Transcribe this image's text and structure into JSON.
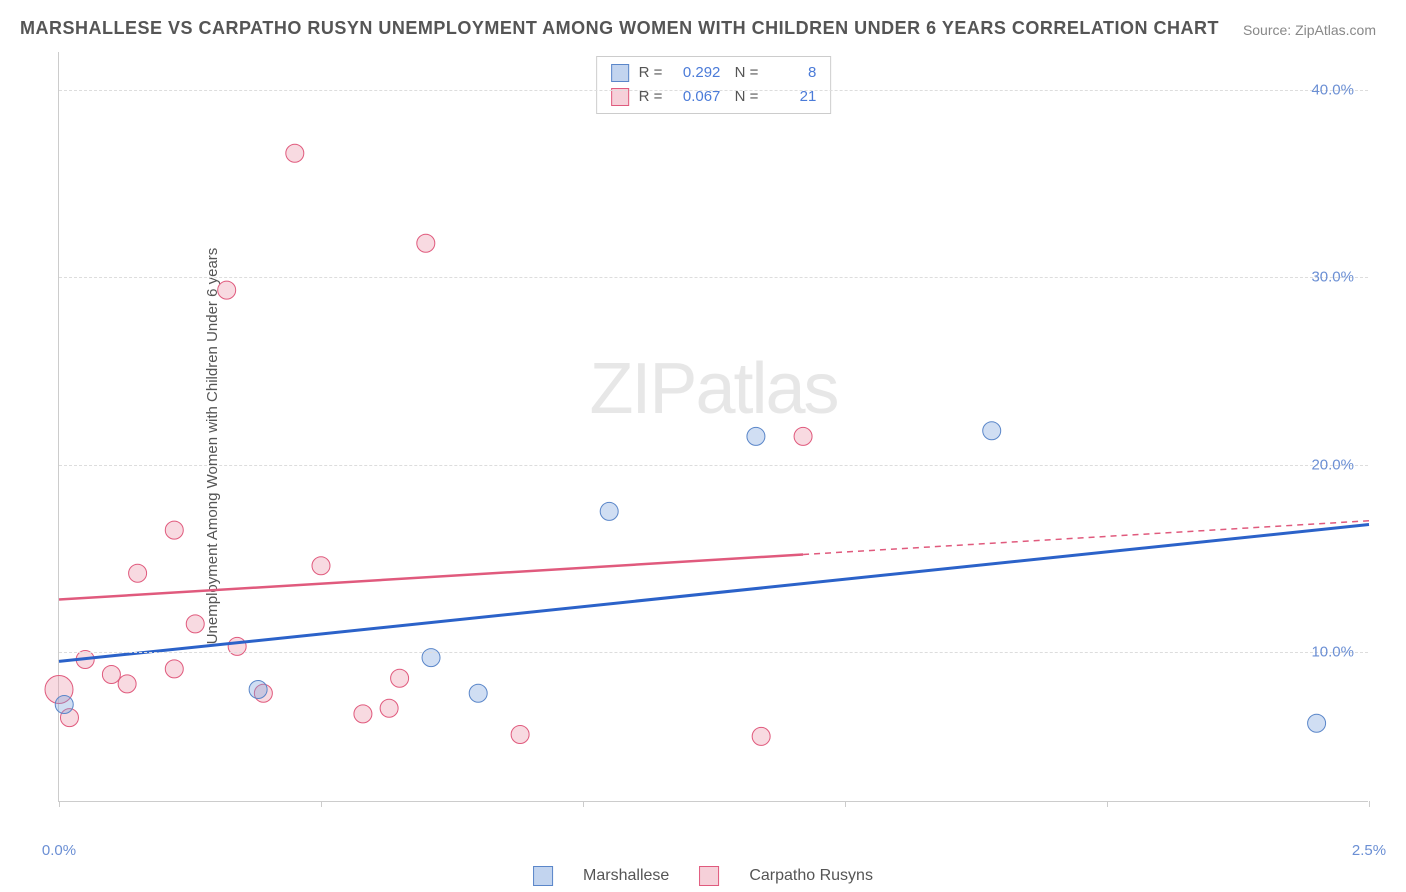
{
  "title": "MARSHALLESE VS CARPATHO RUSYN UNEMPLOYMENT AMONG WOMEN WITH CHILDREN UNDER 6 YEARS CORRELATION CHART",
  "source": "Source: ZipAtlas.com",
  "ylabel": "Unemployment Among Women with Children Under 6 years",
  "watermark_zip": "ZIP",
  "watermark_atlas": "atlas",
  "chart": {
    "type": "scatter",
    "xlim": [
      0.0,
      2.5
    ],
    "ylim": [
      2.0,
      42.0
    ],
    "xticks": [
      0.0,
      0.5,
      1.0,
      1.5,
      2.0,
      2.5
    ],
    "xtick_labels": [
      "0.0%",
      "",
      "",
      "",
      "",
      "2.5%"
    ],
    "yticks": [
      10.0,
      20.0,
      30.0,
      40.0
    ],
    "ytick_labels": [
      "10.0%",
      "20.0%",
      "30.0%",
      "40.0%"
    ],
    "grid_color": "#dddddd",
    "axis_color": "#cccccc",
    "tick_label_color": "#6b8fd4",
    "background_color": "#ffffff",
    "series": [
      {
        "name": "Marshallese",
        "color_fill": "rgba(120,160,220,0.35)",
        "color_stroke": "#5a86c9",
        "trend_color": "#2b62c9",
        "R": 0.292,
        "N": 8,
        "line": {
          "x0": 0.0,
          "y0": 9.5,
          "x1": 2.5,
          "y1": 16.8
        },
        "points": [
          {
            "x": 0.01,
            "y": 7.2,
            "r": 9
          },
          {
            "x": 0.38,
            "y": 8.0,
            "r": 9
          },
          {
            "x": 0.71,
            "y": 9.7,
            "r": 9
          },
          {
            "x": 0.8,
            "y": 7.8,
            "r": 9
          },
          {
            "x": 1.05,
            "y": 17.5,
            "r": 9
          },
          {
            "x": 1.33,
            "y": 21.5,
            "r": 9
          },
          {
            "x": 1.78,
            "y": 21.8,
            "r": 9
          },
          {
            "x": 2.4,
            "y": 6.2,
            "r": 9
          }
        ]
      },
      {
        "name": "Carpatho Rusyns",
        "color_fill": "rgba(235,150,170,0.35)",
        "color_stroke": "#e05a7d",
        "trend_color": "#e05a7d",
        "R": 0.067,
        "N": 21,
        "line": {
          "x0": 0.0,
          "y0": 12.8,
          "x1": 1.42,
          "y1": 15.2,
          "x2": 2.5,
          "y2": 17.0
        },
        "points": [
          {
            "x": 0.0,
            "y": 8.0,
            "r": 14
          },
          {
            "x": 0.02,
            "y": 6.5,
            "r": 9
          },
          {
            "x": 0.05,
            "y": 9.6,
            "r": 9
          },
          {
            "x": 0.1,
            "y": 8.8,
            "r": 9
          },
          {
            "x": 0.13,
            "y": 8.3,
            "r": 9
          },
          {
            "x": 0.15,
            "y": 14.2,
            "r": 9
          },
          {
            "x": 0.22,
            "y": 16.5,
            "r": 9
          },
          {
            "x": 0.22,
            "y": 9.1,
            "r": 9
          },
          {
            "x": 0.26,
            "y": 11.5,
            "r": 9
          },
          {
            "x": 0.32,
            "y": 29.3,
            "r": 9
          },
          {
            "x": 0.34,
            "y": 10.3,
            "r": 9
          },
          {
            "x": 0.39,
            "y": 7.8,
            "r": 9
          },
          {
            "x": 0.45,
            "y": 36.6,
            "r": 9
          },
          {
            "x": 0.5,
            "y": 14.6,
            "r": 9
          },
          {
            "x": 0.58,
            "y": 6.7,
            "r": 9
          },
          {
            "x": 0.63,
            "y": 7.0,
            "r": 9
          },
          {
            "x": 0.65,
            "y": 8.6,
            "r": 9
          },
          {
            "x": 0.7,
            "y": 31.8,
            "r": 9
          },
          {
            "x": 0.88,
            "y": 5.6,
            "r": 9
          },
          {
            "x": 1.34,
            "y": 5.5,
            "r": 9
          },
          {
            "x": 1.42,
            "y": 21.5,
            "r": 9
          }
        ]
      }
    ]
  },
  "legend": {
    "items": [
      {
        "label": "Marshallese",
        "fill": "rgba(120,160,220,0.45)",
        "stroke": "#5a86c9"
      },
      {
        "label": "Carpatho Rusyns",
        "fill": "rgba(235,150,170,0.45)",
        "stroke": "#e05a7d"
      }
    ]
  }
}
